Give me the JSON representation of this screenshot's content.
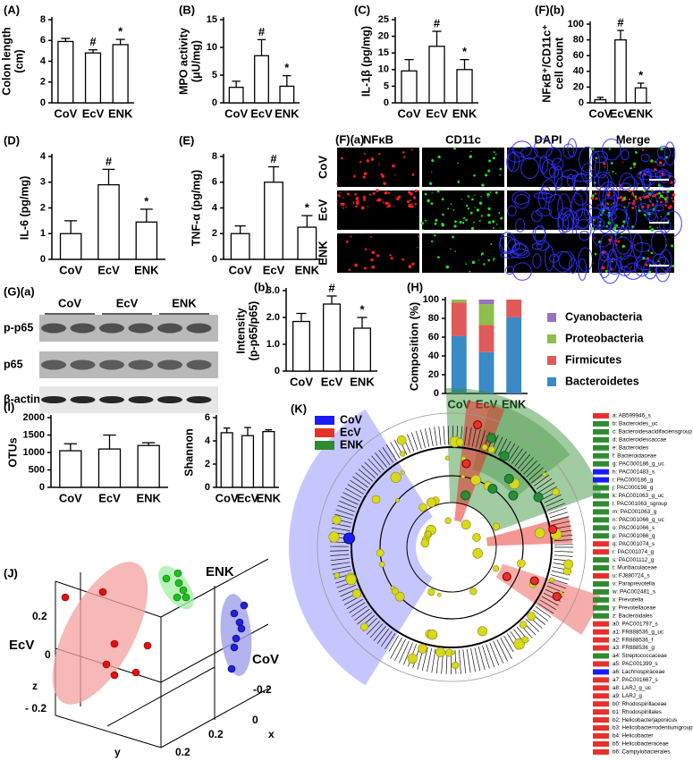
{
  "chart_data": [
    {
      "type": "bar",
      "panel_label": "(A)",
      "ylabel": [
        "Colon length",
        "(cm)"
      ],
      "categories": [
        "CoV",
        "EcV",
        "ENK"
      ],
      "values": [
        5.9,
        4.8,
        5.6
      ],
      "errors": [
        0.3,
        0.3,
        0.5
      ],
      "annotations": [
        null,
        "#",
        "*"
      ],
      "color": "#ffffff",
      "ylim": [
        0,
        8
      ],
      "yticks": [
        0,
        2,
        4,
        6,
        8
      ]
    },
    {
      "type": "bar",
      "panel_label": "(B)",
      "ylabel": [
        "MPO activity",
        "(μU/mg)"
      ],
      "categories": [
        "CoV",
        "EcV",
        "ENK"
      ],
      "values": [
        2.8,
        8.5,
        3.0
      ],
      "errors": [
        1.1,
        2.9,
        1.9
      ],
      "annotations": [
        null,
        "#",
        "*"
      ],
      "color": "#ffffff",
      "ylim": [
        0,
        15
      ],
      "yticks": [
        0,
        5,
        10,
        15
      ]
    },
    {
      "type": "bar",
      "panel_label": "(C)",
      "ylabel": [
        "IL-1β (pg/mg)"
      ],
      "categories": [
        "CoV",
        "EcV",
        "ENK"
      ],
      "values": [
        9.6,
        17,
        10
      ],
      "errors": [
        3.4,
        4.5,
        3.0
      ],
      "annotations": [
        null,
        "#",
        "*"
      ],
      "color": "#ffffff",
      "ylim": [
        0,
        25
      ],
      "yticks": [
        0,
        5,
        10,
        15,
        20,
        25
      ]
    },
    {
      "type": "bar",
      "panel_label": "(F)(b)",
      "ylabel": [
        "NFκB⁺/CD11c⁺",
        "cell count"
      ],
      "categories": [
        "CoV",
        "EcV",
        "ENK"
      ],
      "values": [
        4,
        80,
        19
      ],
      "errors": [
        3,
        12,
        6
      ],
      "annotations": [
        null,
        "#",
        "*"
      ],
      "color": "#ffffff",
      "ylim": [
        0,
        100
      ],
      "yticks": [
        0,
        20,
        40,
        60,
        80,
        100
      ]
    },
    {
      "type": "bar",
      "panel_label": "(D)",
      "ylabel": [
        "IL-6 (pg/mg)"
      ],
      "categories": [
        "CoV",
        "EcV",
        "ENK"
      ],
      "values": [
        1.0,
        2.9,
        1.45
      ],
      "errors": [
        0.5,
        0.6,
        0.5
      ],
      "annotations": [
        null,
        "#",
        "*"
      ],
      "color": "#ffffff",
      "ylim": [
        0,
        4
      ],
      "yticks": [
        0,
        1,
        2,
        3,
        4
      ]
    },
    {
      "type": "bar",
      "panel_label": "(E)",
      "ylabel": [
        "TNF-α (pg/mg)"
      ],
      "categories": [
        "CoV",
        "EcV",
        "ENK"
      ],
      "values": [
        2.0,
        6.0,
        2.5
      ],
      "errors": [
        0.6,
        1.2,
        0.9
      ],
      "annotations": [
        null,
        "#",
        "*"
      ],
      "color": "#ffffff",
      "ylim": [
        0,
        8
      ],
      "yticks": [
        0,
        2,
        4,
        6,
        8
      ]
    },
    {
      "type": "bar",
      "panel_label": "(b)",
      "ylabel": [
        "Intensity",
        "(p-p65/p65)"
      ],
      "categories": [
        "CoV",
        "EcV",
        "ENK"
      ],
      "values": [
        1.85,
        2.5,
        1.6
      ],
      "errors": [
        0.3,
        0.3,
        0.4
      ],
      "annotations": [
        null,
        "#",
        "*"
      ],
      "color": "#ffffff",
      "ylim": [
        0,
        3
      ],
      "yticks": [
        0,
        {
          "value": 1,
          "label": "1.0"
        },
        {
          "value": 2,
          "label": "2.0"
        },
        {
          "value": 3,
          "label": "3.0"
        }
      ]
    },
    {
      "type": "stacked_bar",
      "panel_label": "(H)",
      "ylabel": [
        "Composition (%)"
      ],
      "categories": [
        "CoV",
        "EcV",
        "ENK"
      ],
      "ylim": [
        0,
        100
      ],
      "yticks": [
        0,
        20,
        40,
        60,
        80,
        100
      ],
      "series": [
        {
          "name": "Bacteroidetes",
          "color": "#3a8ac6",
          "values": [
            61,
            44,
            81
          ]
        },
        {
          "name": "Firmicutes",
          "color": "#e05a5a",
          "values": [
            36,
            29,
            19
          ]
        },
        {
          "name": "Proteobacteria",
          "color": "#8cc04a",
          "values": [
            3,
            22,
            0
          ]
        },
        {
          "name": "Cyanobacteria",
          "color": "#9b6fc3",
          "values": [
            0,
            5,
            0
          ]
        }
      ]
    },
    {
      "type": "bar",
      "panel_label": "(I)",
      "ylabel": [
        "OTUs"
      ],
      "categories": [
        "CoV",
        "EcV",
        "ENK"
      ],
      "values": [
        1050,
        1100,
        1200
      ],
      "errors": [
        200,
        400,
        80
      ],
      "color": "#ffffff",
      "ylim": [
        0,
        2000
      ],
      "yticks": [
        0,
        500,
        1000,
        1500,
        2000
      ]
    },
    {
      "type": "bar",
      "ylabel": [
        "Shannon"
      ],
      "categories": [
        "CoV",
        "EcV",
        "ENK"
      ],
      "values": [
        4.7,
        4.45,
        4.8
      ],
      "errors": [
        0.4,
        0.7,
        0.15
      ],
      "color": "#ffffff",
      "ylim": [
        0,
        6
      ],
      "yticks": [
        0,
        2,
        4,
        6
      ]
    }
  ],
  "micrograph": {
    "panel_label": "(F)(a)",
    "columns": [
      {
        "name": "NFκB",
        "color": "#ff2020"
      },
      {
        "name": "CD11c",
        "color": "#20e020"
      },
      {
        "name": "DAPI",
        "color": "#2020ff"
      },
      {
        "name": "Merge",
        "color": "#000000"
      }
    ],
    "rows": [
      "CoV",
      "EcV",
      "ENK"
    ]
  },
  "blot": {
    "panel_label": "(G)(a)",
    "columns": [
      "CoV",
      "EcV",
      "ENK"
    ],
    "rows": [
      "p-p65",
      "p65",
      "β-actin"
    ]
  },
  "pca": {
    "panel_label": "(J)",
    "groups": [
      {
        "name": "ENK",
        "color": "#1e8a1e"
      },
      {
        "name": "EcV",
        "color": "#8b1a1a"
      },
      {
        "name": "CoV",
        "color": "#1a1a8b"
      }
    ],
    "axis_labels": {
      "x": "x",
      "y": "y",
      "z": "z"
    },
    "tick_labels": [
      "0.2",
      "0",
      "- 0.2",
      "-0.2",
      "0",
      "0.2",
      "0.2"
    ]
  },
  "cladogram": {
    "panel_label": "(K)",
    "groups": [
      {
        "name": "CoV",
        "color": "#1a1aff"
      },
      {
        "name": "EcV",
        "color": "#e8302a"
      },
      {
        "name": "ENK",
        "color": "#2e8b2e"
      }
    ],
    "taxa": [
      {
        "label": "a: AB599946_s",
        "color": "#e8302a"
      },
      {
        "label": "b: Bacteroides_uc",
        "color": "#2e8b2e"
      },
      {
        "label": "c: Bacteroidesacidifaciensgroup",
        "color": "#2e8b2e"
      },
      {
        "label": "d: Bacteroidescaccae",
        "color": "#2e8b2e"
      },
      {
        "label": "e: Bacteroides",
        "color": "#2e8b2e"
      },
      {
        "label": "f: Bacteroidaceae",
        "color": "#2e8b2e"
      },
      {
        "label": "g: PAC000186_g_uc",
        "color": "#2e8b2e"
      },
      {
        "label": "h: PAC001483_s",
        "color": "#1a1aff"
      },
      {
        "label": "i: PAC000186_g",
        "color": "#1a1aff"
      },
      {
        "label": "j: PAC000198_g",
        "color": "#2e8b2e"
      },
      {
        "label": "k: PAC001063_g_uc",
        "color": "#2e8b2e"
      },
      {
        "label": "l: PAC001063_sgroup",
        "color": "#2e8b2e"
      },
      {
        "label": "m: PAC001063_g",
        "color": "#2e8b2e"
      },
      {
        "label": "n: PAC001066_g_uc",
        "color": "#2e8b2e"
      },
      {
        "label": "o: PAC001066_s",
        "color": "#2e8b2e"
      },
      {
        "label": "p: PAC001066_g",
        "color": "#2e8b2e"
      },
      {
        "label": "q: PAC001074_s",
        "color": "#e8302a"
      },
      {
        "label": "r: PAC001074_g",
        "color": "#e8302a"
      },
      {
        "label": "s: PAC001112_g",
        "color": "#2e8b2e"
      },
      {
        "label": "t: Muribaculaceae",
        "color": "#2e8b2e"
      },
      {
        "label": "u: FJ880724_s",
        "color": "#e8302a"
      },
      {
        "label": "v: Paraprevotella",
        "color": "#2e8b2e"
      },
      {
        "label": "w: PAC002481_s",
        "color": "#2e8b2e"
      },
      {
        "label": "x: Prevotella",
        "color": "#2e8b2e"
      },
      {
        "label": "y: Prevotellaceae",
        "color": "#2e8b2e"
      },
      {
        "label": "z: Bacteroidales",
        "color": "#2e8b2e"
      },
      {
        "label": "a0: PAC001797_s",
        "color": "#e8302a"
      },
      {
        "label": "a1: FR888536_g_uc",
        "color": "#e8302a"
      },
      {
        "label": "a2: FR888536_f",
        "color": "#e8302a"
      },
      {
        "label": "a3: FR888536_g",
        "color": "#e8302a"
      },
      {
        "label": "a4: Streptococcaceae",
        "color": "#2e8b2e"
      },
      {
        "label": "a5: PAC001399_s",
        "color": "#e8302a"
      },
      {
        "label": "a6: Lachnospiraceae",
        "color": "#1a1aff"
      },
      {
        "label": "a7: PAC001667_s",
        "color": "#e8302a"
      },
      {
        "label": "a8: LARJ_g_uc",
        "color": "#e8302a"
      },
      {
        "label": "a9: LARJ_g",
        "color": "#e8302a"
      },
      {
        "label": "b0: Rhodospirillaceae",
        "color": "#e8302a"
      },
      {
        "label": "b1: Rhodospirillales",
        "color": "#e8302a"
      },
      {
        "label": "b2: Helicobacterjaponicus",
        "color": "#e8302a"
      },
      {
        "label": "b3: Helicobacterrodentiumgroup",
        "color": "#e8302a"
      },
      {
        "label": "b4: Helicobacter",
        "color": "#e8302a"
      },
      {
        "label": "b5: Helicobacteraceae",
        "color": "#e8302a"
      },
      {
        "label": "b6: Campylobacterales",
        "color": "#e8302a"
      }
    ]
  }
}
